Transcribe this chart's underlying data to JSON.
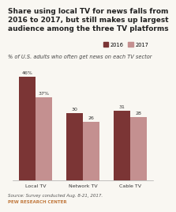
{
  "title": "Share using local TV for news falls from\n2016 to 2017, but still makes up largest\naudience among the three TV platforms",
  "subtitle_part1": "% of U.S. adults who ",
  "subtitle_underline": "often",
  "subtitle_part2": " get news on each TV sector",
  "categories": [
    "Local TV",
    "Network TV",
    "Cable TV"
  ],
  "values_2016": [
    46,
    30,
    31
  ],
  "values_2017": [
    37,
    26,
    28
  ],
  "labels_2016": [
    "46%",
    "30",
    "31"
  ],
  "labels_2017": [
    "37%",
    "26",
    "28"
  ],
  "color_2016": "#7b3535",
  "color_2017": "#c49090",
  "legend_2016": "2016",
  "legend_2017": "2017",
  "bar_width": 0.35,
  "ylim": [
    0,
    52
  ],
  "background_color": "#f9f7f2",
  "title_fontsize": 6.5,
  "subtitle_fontsize": 4.8,
  "tick_fontsize": 4.5,
  "label_fontsize": 4.5,
  "source_fontsize": 4.0,
  "legend_fontsize": 4.8,
  "source": "Source: Survey conducted Aug. 8-21, 2017.",
  "attribution": "PEW RESEARCH CENTER",
  "attribution_color": "#c1783c"
}
